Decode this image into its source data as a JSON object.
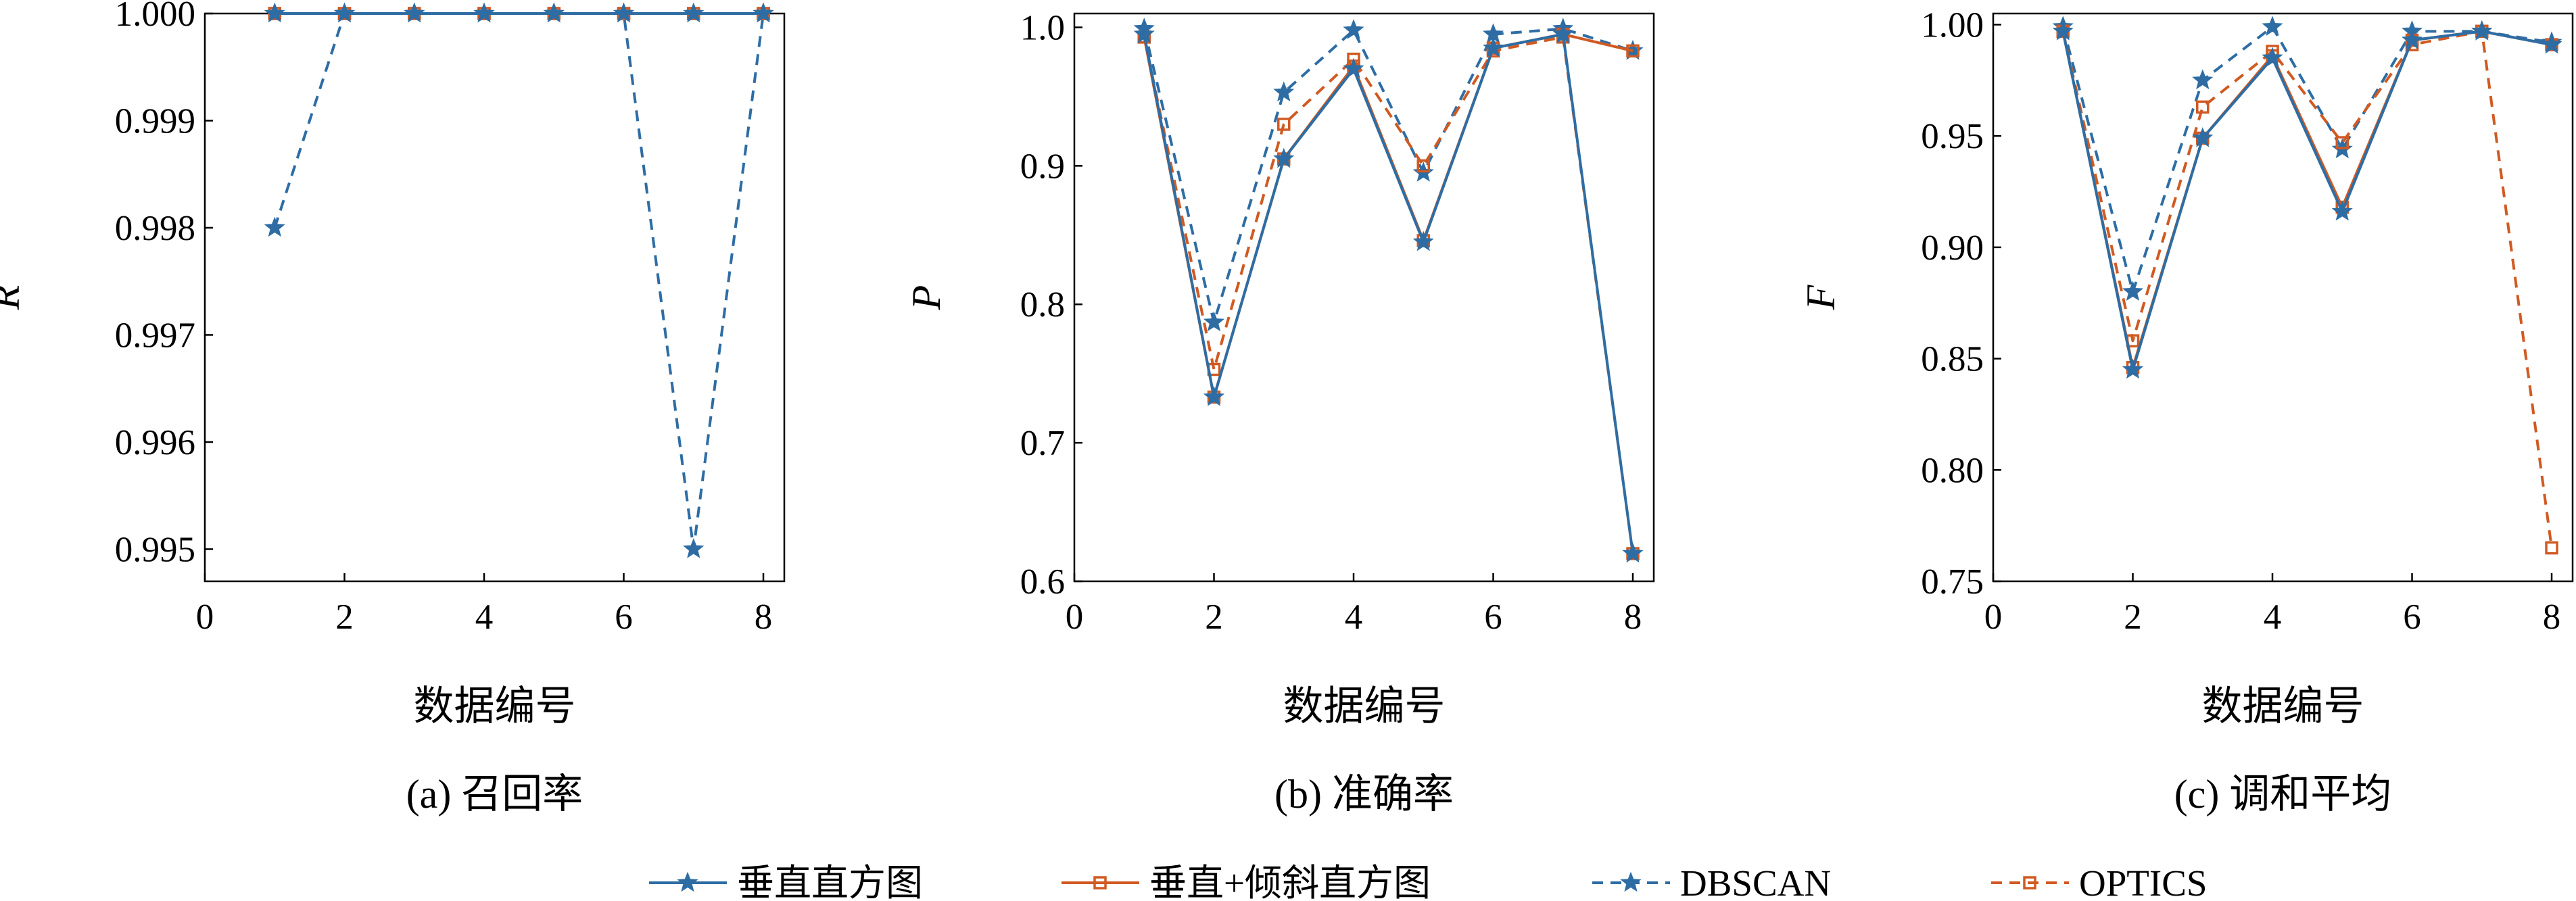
{
  "legend": [
    {
      "label": "垂直直方图",
      "color": "#2e6da4",
      "dash": "solid",
      "marker": "star"
    },
    {
      "label": "垂直+倾斜直方图",
      "color": "#d05a22",
      "dash": "solid",
      "marker": "square"
    },
    {
      "label": "DBSCAN",
      "color": "#2e6da4",
      "dash": "dashed",
      "marker": "star"
    },
    {
      "label": "OPTICS",
      "color": "#d05a22",
      "dash": "dashed",
      "marker": "square"
    }
  ],
  "chart_data": [
    {
      "type": "line",
      "caption": "(a) 召回率",
      "xlabel": "数据编号",
      "ylabel": "R",
      "xlim": [
        0,
        8.3
      ],
      "ylim": [
        0.9947,
        1.0
      ],
      "xticks": [
        0,
        2,
        4,
        6,
        8
      ],
      "yticks": [
        0.995,
        0.996,
        0.997,
        0.998,
        0.999,
        1.0
      ],
      "ytick_labels": [
        "0.995",
        "0.996",
        "0.997",
        "0.998",
        "0.999",
        "1.000"
      ],
      "x": [
        1,
        2,
        3,
        4,
        5,
        6,
        7,
        8
      ],
      "series": [
        {
          "name": "垂直直方图",
          "values": [
            1.0,
            1.0,
            1.0,
            1.0,
            1.0,
            1.0,
            1.0,
            1.0
          ]
        },
        {
          "name": "垂直+倾斜直方图",
          "values": [
            1.0,
            1.0,
            1.0,
            1.0,
            1.0,
            1.0,
            1.0,
            1.0
          ]
        },
        {
          "name": "DBSCAN",
          "values": [
            0.998,
            1.0,
            1.0,
            1.0,
            1.0,
            1.0,
            0.995,
            1.0
          ]
        },
        {
          "name": "OPTICS",
          "values": [
            1.0,
            1.0,
            1.0,
            1.0,
            1.0,
            1.0,
            1.0,
            1.0
          ]
        }
      ]
    },
    {
      "type": "line",
      "caption": "(b) 准确率",
      "xlabel": "数据编号",
      "ylabel": "P",
      "xlim": [
        0,
        8.3
      ],
      "ylim": [
        0.6,
        1.01
      ],
      "xticks": [
        0,
        2,
        4,
        6,
        8
      ],
      "yticks": [
        0.6,
        0.7,
        0.8,
        0.9,
        1.0
      ],
      "ytick_labels": [
        "0.6",
        "0.7",
        "0.8",
        "0.9",
        "1.0"
      ],
      "x": [
        1,
        2,
        3,
        4,
        5,
        6,
        7,
        8
      ],
      "series": [
        {
          "name": "垂直直方图",
          "values": [
            0.995,
            0.733,
            0.905,
            0.97,
            0.845,
            0.985,
            0.995,
            0.62
          ]
        },
        {
          "name": "垂直+倾斜直方图",
          "values": [
            0.993,
            0.733,
            0.905,
            0.972,
            0.846,
            0.985,
            0.995,
            0.983
          ]
        },
        {
          "name": "DBSCAN",
          "values": [
            0.999,
            0.787,
            0.953,
            0.998,
            0.895,
            0.995,
            0.999,
            0.983
          ]
        },
        {
          "name": "OPTICS",
          "values": [
            0.993,
            0.753,
            0.93,
            0.977,
            0.9,
            0.983,
            0.993,
            0.62
          ]
        }
      ]
    },
    {
      "type": "line",
      "caption": "(c) 调和平均",
      "xlabel": "数据编号",
      "ylabel": "F",
      "xlim": [
        0,
        8.3
      ],
      "ylim": [
        0.75,
        1.005
      ],
      "xticks": [
        0,
        2,
        4,
        6,
        8
      ],
      "yticks": [
        0.75,
        0.8,
        0.85,
        0.9,
        0.95,
        1.0
      ],
      "ytick_labels": [
        "0.75",
        "0.80",
        "0.85",
        "0.90",
        "0.95",
        "1.00"
      ],
      "x": [
        1,
        2,
        3,
        4,
        5,
        6,
        7,
        8
      ],
      "series": [
        {
          "name": "垂直直方图",
          "values": [
            0.997,
            0.845,
            0.949,
            0.985,
            0.916,
            0.993,
            0.997,
            0.991
          ]
        },
        {
          "name": "垂直+倾斜直方图",
          "values": [
            0.997,
            0.846,
            0.949,
            0.986,
            0.918,
            0.993,
            0.997,
            0.991
          ]
        },
        {
          "name": "DBSCAN",
          "values": [
            0.999,
            0.88,
            0.975,
            0.999,
            0.944,
            0.997,
            0.997,
            0.992
          ]
        },
        {
          "name": "OPTICS",
          "values": [
            0.997,
            0.858,
            0.963,
            0.988,
            0.947,
            0.991,
            0.997,
            0.765
          ]
        }
      ]
    }
  ]
}
